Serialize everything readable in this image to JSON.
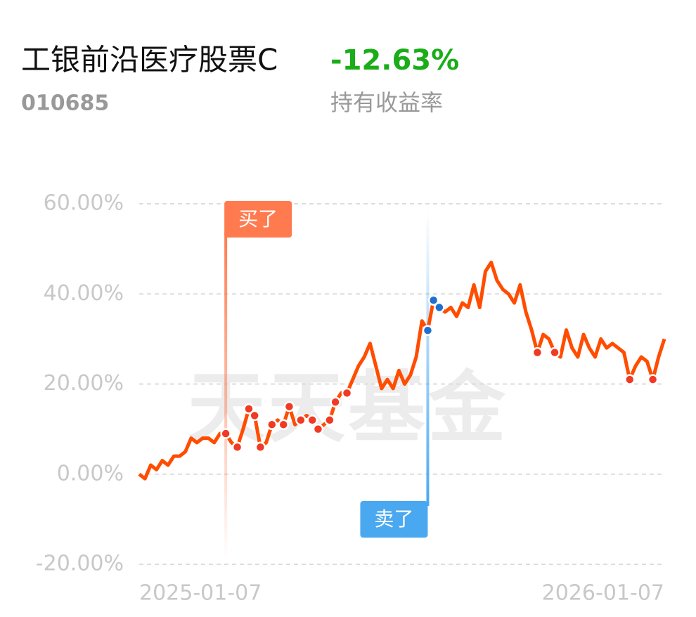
{
  "header": {
    "title": "工银前沿医疗股票C",
    "return": "-12.63%",
    "code": "010685",
    "return_label": "持有收益率"
  },
  "chart_data": {
    "type": "line",
    "watermark": "天天基金",
    "categories": [
      "2025-01-07",
      null,
      null,
      null,
      null,
      null,
      null,
      null,
      null,
      null,
      null,
      null,
      null,
      null,
      null,
      null,
      null,
      null,
      null,
      null,
      null,
      null,
      null,
      null,
      null,
      null,
      null,
      null,
      null,
      null,
      null,
      null,
      null,
      null,
      null,
      null,
      null,
      null,
      null,
      null,
      null,
      null,
      null,
      null,
      null,
      null,
      null,
      null,
      null,
      null,
      null,
      null,
      null,
      null,
      null,
      null,
      null,
      null,
      null,
      null,
      null,
      null,
      null,
      null,
      null,
      null,
      null,
      null,
      null,
      null,
      null,
      null,
      null,
      null,
      null,
      null,
      null,
      null,
      null,
      null,
      null,
      null,
      null,
      null,
      null,
      null,
      null,
      null,
      null,
      null,
      null,
      "2026-01-07"
    ],
    "series": [
      {
        "color": "#ff4d00",
        "values": [
          0,
          -1,
          2,
          1,
          3,
          2,
          4,
          4,
          5,
          8,
          7,
          8,
          8,
          7,
          9,
          9,
          7,
          6,
          10,
          14.5,
          13,
          6,
          7,
          11,
          12,
          11,
          15,
          11,
          12,
          13,
          12,
          10,
          11,
          12,
          16,
          18,
          18,
          21,
          24,
          26,
          29,
          24,
          19,
          21,
          19,
          23,
          20,
          22,
          26,
          34,
          31.9,
          38.6,
          37,
          36,
          37,
          35,
          38,
          37,
          42,
          37,
          45,
          47,
          43,
          41,
          40,
          38,
          42,
          36,
          32,
          27,
          31,
          30,
          27,
          26,
          32,
          28,
          26,
          31,
          28,
          26,
          30,
          28,
          29,
          28,
          27,
          21,
          24,
          26,
          25,
          21,
          26,
          30
        ]
      },
      {
        "name": "买了",
        "color": "#f03a24",
        "values": [
          null,
          null,
          null,
          null,
          null,
          null,
          null,
          null,
          null,
          null,
          null,
          null,
          null,
          null,
          null,
          9,
          null,
          6,
          null,
          14.5,
          13,
          6,
          null,
          11,
          null,
          11,
          15,
          null,
          12,
          null,
          12,
          10,
          null,
          12,
          16,
          null,
          18,
          null,
          null,
          null,
          null,
          null,
          null,
          null,
          null,
          null,
          null,
          null,
          null,
          null,
          null,
          null,
          null,
          null,
          null,
          null,
          null,
          null,
          null,
          null,
          null,
          null,
          null,
          null,
          null,
          null,
          null,
          null,
          null,
          27,
          null,
          null,
          27,
          null,
          null,
          null,
          null,
          null,
          null,
          null,
          null,
          null,
          null,
          null,
          null,
          21,
          null,
          null,
          null,
          21,
          null,
          null
        ]
      },
      {
        "name": "卖了",
        "color": "#1f6fd1",
        "values": [
          null,
          null,
          null,
          null,
          null,
          null,
          null,
          null,
          null,
          null,
          null,
          null,
          null,
          null,
          null,
          null,
          null,
          null,
          null,
          null,
          null,
          null,
          null,
          null,
          null,
          null,
          null,
          null,
          null,
          null,
          null,
          null,
          null,
          null,
          null,
          null,
          null,
          null,
          null,
          null,
          null,
          null,
          null,
          null,
          null,
          null,
          null,
          null,
          null,
          null,
          31.9,
          38.6,
          37,
          null,
          null,
          null,
          null,
          null,
          null,
          null,
          null,
          null,
          null,
          null,
          null,
          null,
          null,
          null,
          null,
          null,
          null,
          null,
          null,
          null,
          null,
          null,
          null,
          null,
          null,
          null,
          null,
          null,
          null,
          null,
          null,
          null,
          null,
          null,
          null,
          null,
          null,
          null
        ]
      }
    ],
    "ylim": [
      -20,
      60
    ],
    "yticks": [
      {
        "value": 60,
        "label": "60.00%"
      },
      {
        "value": 40,
        "label": "40.00%"
      },
      {
        "value": 20,
        "label": "20.00%"
      },
      {
        "value": 0,
        "label": "0.00%"
      },
      {
        "value": -20,
        "label": "-20.00%"
      }
    ],
    "grid": true
  }
}
